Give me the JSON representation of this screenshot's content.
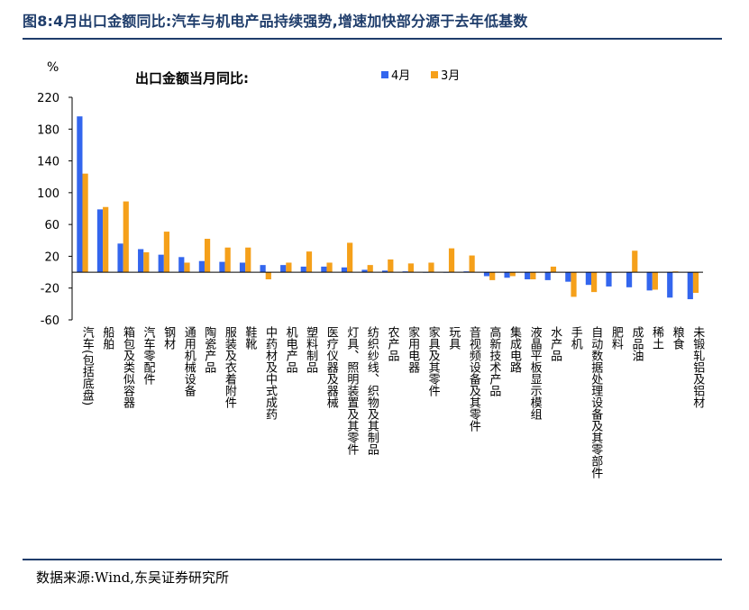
{
  "figure": {
    "title": "图8:4月出口金额同比:汽车与机电产品持续强势,增速加快部分源于去年低基数",
    "source": "数据来源:Wind,东吴证券研究所"
  },
  "colors": {
    "series_april": "#3366ee",
    "series_march": "#f5a01a",
    "rule": "#1f3d6b"
  },
  "chart_data": {
    "type": "bar",
    "title": "出口金额当月同比:",
    "ylabel": "%",
    "ylim": [
      -60,
      220
    ],
    "yticks": [
      220,
      180,
      140,
      100,
      60,
      20,
      -20,
      -60
    ],
    "grid": false,
    "legend": "top-right",
    "categories": [
      "汽车(包括底盘)",
      "船舶",
      "箱包及类似容器",
      "汽车零配件",
      "钢材",
      "通用机械设备",
      "陶瓷产品",
      "服装及衣着附件",
      "鞋靴",
      "中药材及中式成药",
      "机电产品",
      "塑料制品",
      "医疗仪器及器械",
      "灯具、照明装置及其零件",
      "纺织纱线、织物及其制品",
      "农产品",
      "家用电器",
      "家具及其零件",
      "玩具",
      "音视频设备及其零件",
      "高新技术产品",
      "集成电路",
      "液晶平板显示模组",
      "水产品",
      "手机",
      "自动数据处理设备及其零部件",
      "肥料",
      "成品油",
      "稀土",
      "粮食",
      "未锻轧铝及铝材"
    ],
    "series": [
      {
        "name": "4月",
        "values": [
          196,
          79,
          36,
          29,
          22,
          19,
          14,
          13,
          12,
          9,
          9,
          7,
          7,
          6,
          3,
          2,
          1,
          0,
          0,
          1,
          -5,
          -7,
          -9,
          -10,
          -12,
          -16,
          -18,
          -19,
          -23,
          -32,
          -34
        ]
      },
      {
        "name": "3月",
        "values": [
          124,
          82,
          89,
          25,
          51,
          12,
          42,
          31,
          31,
          -9,
          12,
          26,
          12,
          37,
          9,
          16,
          11,
          12,
          30,
          21,
          -10,
          -5,
          -9,
          7,
          -31,
          -25,
          0,
          27,
          -22,
          1,
          -26
        ]
      }
    ]
  }
}
